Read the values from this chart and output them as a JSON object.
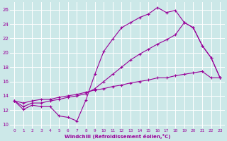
{
  "background_color": "#cce8e8",
  "grid_color": "#ffffff",
  "line_color": "#990099",
  "xlabel": "Windchill (Refroidissement éolien,°C)",
  "xlim": [
    -0.5,
    23.5
  ],
  "ylim": [
    9.5,
    27
  ],
  "yticks": [
    10,
    12,
    14,
    16,
    18,
    20,
    22,
    24,
    26
  ],
  "xticks": [
    0,
    1,
    2,
    3,
    4,
    5,
    6,
    7,
    8,
    9,
    10,
    11,
    12,
    13,
    14,
    15,
    16,
    17,
    18,
    19,
    20,
    21,
    22,
    23
  ],
  "series1_x": [
    0,
    1,
    2,
    3,
    4,
    5,
    6,
    7,
    8,
    9,
    10,
    11,
    12,
    13,
    14,
    15,
    16,
    17,
    18,
    19,
    20,
    21,
    22,
    23
  ],
  "series1_y": [
    13.3,
    12.1,
    12.7,
    12.5,
    12.5,
    11.2,
    11.0,
    10.5,
    13.4,
    17.0,
    20.2,
    21.9,
    23.5,
    24.2,
    24.9,
    25.4,
    26.3,
    25.6,
    25.9,
    24.2,
    23.5,
    21.0,
    19.3,
    16.5
  ],
  "series2_x": [
    0,
    1,
    2,
    3,
    4,
    5,
    6,
    7,
    8,
    9,
    10,
    11,
    12,
    13,
    14,
    15,
    16,
    17,
    18,
    19,
    20,
    21,
    22,
    23
  ],
  "series2_y": [
    13.3,
    12.5,
    13.0,
    13.0,
    13.3,
    13.5,
    13.8,
    14.0,
    14.3,
    15.0,
    16.0,
    17.0,
    18.0,
    19.0,
    19.8,
    20.5,
    21.2,
    21.8,
    22.5,
    24.2,
    23.5,
    21.0,
    19.3,
    16.5
  ],
  "series3_x": [
    0,
    1,
    2,
    3,
    4,
    5,
    6,
    7,
    8,
    9,
    10,
    11,
    12,
    13,
    14,
    15,
    16,
    17,
    18,
    19,
    20,
    21,
    22,
    23
  ],
  "series3_y": [
    13.3,
    13.0,
    13.3,
    13.5,
    13.5,
    13.8,
    14.0,
    14.2,
    14.5,
    14.8,
    15.0,
    15.3,
    15.5,
    15.8,
    16.0,
    16.2,
    16.5,
    16.5,
    16.8,
    17.0,
    17.2,
    17.4,
    16.5,
    16.5
  ]
}
